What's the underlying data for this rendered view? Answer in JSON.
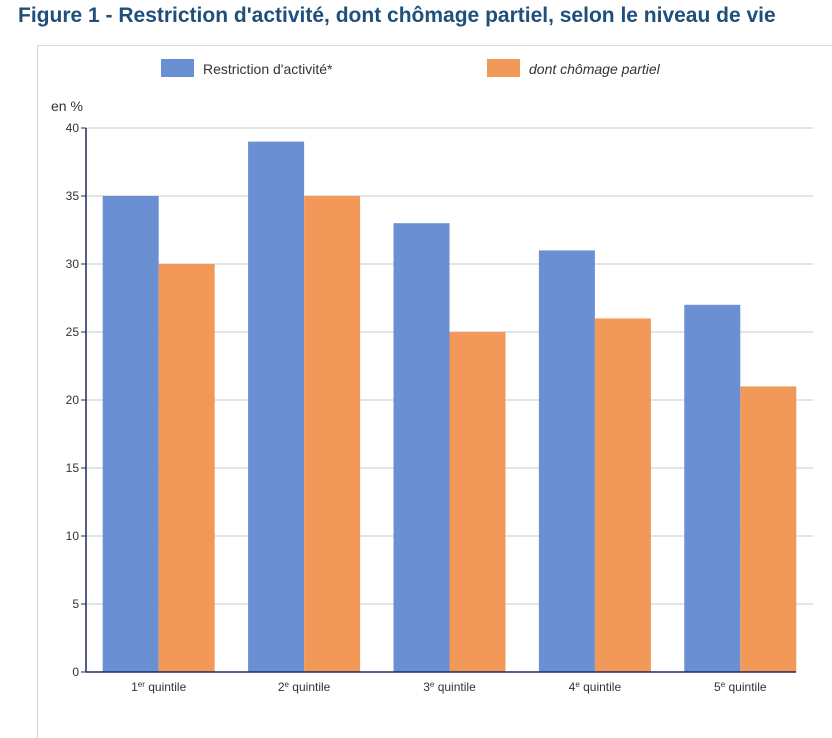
{
  "figure": {
    "title": "Figure 1 - Restriction d'activité, dont chômage partiel, selon le niveau de vie"
  },
  "chart_data": {
    "type": "bar",
    "ylabel": "en %",
    "ylim": [
      0,
      40
    ],
    "yticks": [
      0,
      5,
      10,
      15,
      20,
      25,
      30,
      35,
      40
    ],
    "grid": true,
    "legend_position": "top",
    "categories": [
      {
        "base": "1",
        "sup": "er",
        "rest": " quintile"
      },
      {
        "base": "2",
        "sup": "e",
        "rest": " quintile"
      },
      {
        "base": "3",
        "sup": "e",
        "rest": " quintile"
      },
      {
        "base": "4",
        "sup": "e",
        "rest": " quintile"
      },
      {
        "base": "5",
        "sup": "e",
        "rest": " quintile"
      }
    ],
    "series": [
      {
        "name": "Restriction d'activité*",
        "color": "#6a8fd3",
        "italic": false,
        "values": [
          35,
          39,
          33,
          31,
          27
        ]
      },
      {
        "name": "dont chômage partiel",
        "color": "#f2995a",
        "italic": true,
        "values": [
          30,
          35,
          25,
          26,
          21
        ]
      }
    ]
  }
}
